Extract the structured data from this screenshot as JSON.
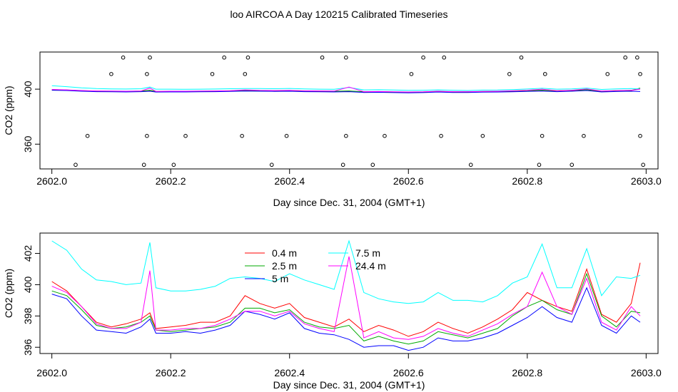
{
  "title": "loo AIRCOA A  Day 120215  Calibrated Timeseries",
  "chart_data": [
    {
      "type": "line",
      "xlabel": "Day since Dec. 31, 2004 (GMT+1)",
      "ylabel": "CO2 (ppm)",
      "xlim": [
        2601.98,
        2603.02
      ],
      "ylim": [
        342,
        427
      ],
      "x_ticks": [
        "2602.0",
        "2602.2",
        "2602.4",
        "2602.6",
        "2602.8",
        "2603.0"
      ],
      "y_ticks": [
        "360",
        "400"
      ],
      "series_colors": [
        "#ff0000",
        "#00aa00",
        "#0000ff",
        "#00ffff",
        "#ff00ff"
      ],
      "markers": {
        "style": "open-circle",
        "x": [
          2602.04,
          2602.06,
          2602.1,
          2602.12,
          2602.155,
          2602.16,
          2602.16,
          2602.165,
          2602.205,
          2602.225,
          2602.27,
          2602.29,
          2602.32,
          2602.325,
          2602.33,
          2602.37,
          2602.395,
          2602.455,
          2602.49,
          2602.495,
          2602.495,
          2602.54,
          2602.56,
          2602.605,
          2602.625,
          2602.655,
          2602.66,
          2602.705,
          2602.725,
          2602.77,
          2602.79,
          2602.82,
          2602.825,
          2602.83,
          2602.875,
          2602.895,
          2602.935,
          2602.965,
          2602.985,
          2602.99,
          2602.99,
          2602.995
        ],
        "y": [
          345,
          366,
          411,
          423,
          345,
          366,
          411,
          423,
          345,
          366,
          411,
          423,
          366,
          411,
          423,
          345,
          366,
          423,
          345,
          366,
          423,
          345,
          366,
          411,
          423,
          366,
          423,
          345,
          366,
          411,
          423,
          345,
          366,
          411,
          345,
          366,
          411,
          423,
          423,
          366,
          411,
          345
        ]
      },
      "x": [
        2602.0,
        2602.025,
        2602.05,
        2602.075,
        2602.1,
        2602.125,
        2602.15,
        2602.165,
        2602.175,
        2602.2,
        2602.225,
        2602.25,
        2602.275,
        2602.3,
        2602.325,
        2602.35,
        2602.375,
        2602.4,
        2602.425,
        2602.45,
        2602.475,
        2602.5,
        2602.525,
        2602.55,
        2602.575,
        2602.6,
        2602.625,
        2602.65,
        2602.675,
        2602.7,
        2602.725,
        2602.75,
        2602.775,
        2602.8,
        2602.825,
        2602.85,
        2602.875,
        2602.9,
        2602.925,
        2602.95,
        2602.975,
        2602.99
      ],
      "series": [
        {
          "values": [
            399.5,
            399.3,
            398.8,
            398.5,
            398.4,
            398.3,
            398.5,
            399.0,
            398.2,
            398.3,
            398.3,
            398.4,
            398.5,
            398.7,
            399.0,
            398.9,
            398.8,
            398.9,
            398.6,
            398.5,
            398.4,
            398.6,
            398.0,
            398.1,
            397.9,
            397.8,
            397.9,
            398.3,
            398.0,
            398.0,
            398.2,
            398.3,
            398.5,
            398.9,
            399.1,
            398.7,
            399.0,
            399.5,
            398.4,
            398.8,
            399.0,
            400.3
          ]
        },
        {
          "values": [
            399.7,
            399.4,
            398.9,
            398.6,
            398.5,
            398.4,
            398.6,
            399.2,
            398.3,
            398.4,
            398.4,
            398.5,
            398.6,
            398.8,
            399.1,
            399.0,
            398.9,
            399.0,
            398.7,
            398.6,
            398.5,
            398.7,
            398.1,
            398.2,
            398.0,
            397.9,
            398.0,
            398.4,
            398.1,
            398.1,
            398.3,
            398.4,
            398.6,
            399.0,
            399.2,
            398.8,
            399.1,
            399.6,
            398.5,
            398.9,
            399.1,
            400.8
          ]
        },
        {
          "values": [
            399.2,
            399.0,
            398.5,
            398.2,
            398.1,
            398.0,
            398.2,
            398.5,
            397.9,
            398.0,
            398.0,
            398.1,
            398.2,
            398.4,
            398.6,
            398.5,
            398.4,
            398.5,
            398.2,
            398.1,
            398.0,
            398.2,
            397.6,
            397.7,
            397.5,
            397.3,
            397.5,
            397.9,
            397.6,
            397.6,
            397.8,
            397.9,
            398.1,
            398.4,
            398.6,
            398.2,
            398.5,
            399.0,
            398.0,
            398.3,
            398.5,
            398.3
          ]
        },
        {
          "values": [
            402.5,
            401.8,
            401.0,
            400.4,
            400.2,
            400.1,
            400.3,
            401.5,
            400.0,
            400.0,
            399.9,
            400.0,
            400.1,
            400.3,
            400.4,
            400.4,
            400.3,
            400.5,
            400.2,
            400.0,
            399.9,
            401.2,
            399.5,
            399.6,
            399.4,
            399.1,
            399.2,
            399.5,
            399.2,
            399.0,
            399.3,
            399.4,
            399.7,
            400.1,
            400.6,
            400.0,
            400.2,
            400.8,
            399.8,
            400.2,
            400.4,
            400.2
          ]
        },
        {
          "values": [
            399.8,
            399.5,
            399.0,
            398.7,
            398.6,
            398.5,
            398.7,
            400.8,
            398.4,
            398.5,
            398.5,
            398.6,
            398.7,
            398.9,
            399.5,
            399.1,
            399.0,
            399.1,
            398.8,
            398.7,
            398.6,
            401.5,
            398.2,
            398.3,
            398.1,
            398.0,
            398.1,
            398.5,
            398.2,
            398.2,
            398.4,
            398.5,
            398.8,
            399.2,
            400.0,
            398.9,
            399.2,
            400.2,
            398.6,
            399.0,
            399.2,
            400.0
          ]
        }
      ]
    },
    {
      "type": "line",
      "xlabel": "Day since Dec. 31, 2004 (GMT+1)",
      "ylabel": "CO2 (ppm)",
      "xlim": [
        2601.98,
        2603.02
      ],
      "ylim": [
        395.6,
        403.3
      ],
      "x_ticks": [
        "2602.0",
        "2602.2",
        "2602.4",
        "2602.6",
        "2602.8",
        "2603.0"
      ],
      "y_ticks": [
        "396",
        "398",
        "400",
        "402"
      ],
      "legend": {
        "entries": [
          {
            "label": "0.4 m",
            "color": "#ff0000"
          },
          {
            "label": "2.5 m",
            "color": "#00aa00"
          },
          {
            "label": "5 m",
            "color": "#0000ff"
          },
          {
            "label": "7.5 m",
            "color": "#00ffff"
          },
          {
            "label": "24.4 m",
            "color": "#ff00ff"
          }
        ]
      },
      "x": [
        2602.0,
        2602.025,
        2602.05,
        2602.075,
        2602.1,
        2602.125,
        2602.15,
        2602.165,
        2602.175,
        2602.2,
        2602.225,
        2602.25,
        2602.275,
        2602.3,
        2602.325,
        2602.35,
        2602.375,
        2602.4,
        2602.425,
        2602.45,
        2602.475,
        2602.5,
        2602.525,
        2602.55,
        2602.575,
        2602.6,
        2602.625,
        2602.65,
        2602.675,
        2602.7,
        2602.725,
        2602.75,
        2602.775,
        2602.8,
        2602.825,
        2602.85,
        2602.875,
        2602.9,
        2602.925,
        2602.95,
        2602.975,
        2602.99
      ],
      "series": [
        {
          "name": "0.4 m",
          "values": [
            400.2,
            399.6,
            398.6,
            397.6,
            397.3,
            397.5,
            397.8,
            398.2,
            397.2,
            397.3,
            397.4,
            397.6,
            397.6,
            398.0,
            399.3,
            398.8,
            398.5,
            398.8,
            397.9,
            397.6,
            397.3,
            397.8,
            397.0,
            397.4,
            397.1,
            396.7,
            397.0,
            397.6,
            397.2,
            396.9,
            397.3,
            397.8,
            398.4,
            399.5,
            399.0,
            398.6,
            398.3,
            401.0,
            398.1,
            397.6,
            398.8,
            401.4
          ]
        },
        {
          "name": "2.5 m",
          "values": [
            399.6,
            399.3,
            398.4,
            397.4,
            397.2,
            397.3,
            397.6,
            398.0,
            397.1,
            397.0,
            397.1,
            397.2,
            397.3,
            397.6,
            398.5,
            398.5,
            398.2,
            398.4,
            397.6,
            397.3,
            397.2,
            397.4,
            396.4,
            396.7,
            396.4,
            396.2,
            396.4,
            397.0,
            396.8,
            396.6,
            396.9,
            397.2,
            398.0,
            398.6,
            399.0,
            398.4,
            398.1,
            400.7,
            398.0,
            397.3,
            398.3,
            398.2
          ]
        },
        {
          "name": "5 m",
          "values": [
            399.4,
            399.1,
            398.0,
            397.1,
            397.0,
            396.9,
            397.3,
            397.8,
            396.9,
            396.9,
            397.0,
            396.9,
            397.1,
            397.4,
            398.3,
            398.1,
            397.8,
            398.2,
            397.2,
            396.9,
            396.8,
            396.5,
            396.0,
            396.1,
            396.1,
            395.8,
            396.0,
            396.6,
            396.4,
            396.4,
            396.6,
            396.9,
            397.4,
            397.9,
            398.6,
            397.9,
            397.6,
            399.8,
            397.4,
            396.9,
            398.0,
            397.6
          ]
        },
        {
          "name": "7.5 m",
          "values": [
            402.8,
            402.2,
            401.0,
            400.3,
            400.2,
            400.0,
            400.1,
            402.7,
            399.8,
            399.6,
            399.6,
            399.7,
            399.9,
            400.4,
            400.5,
            400.4,
            400.2,
            400.7,
            400.3,
            400.0,
            399.7,
            402.8,
            399.5,
            399.1,
            398.9,
            398.8,
            398.9,
            399.5,
            399.0,
            399.0,
            398.9,
            399.3,
            400.1,
            400.5,
            402.6,
            399.8,
            399.8,
            402.3,
            399.3,
            400.5,
            400.4,
            400.6
          ]
        },
        {
          "name": "24.4 m",
          "values": [
            399.9,
            399.5,
            398.6,
            397.5,
            397.2,
            397.2,
            397.6,
            400.9,
            397.1,
            397.1,
            397.2,
            397.2,
            397.4,
            397.8,
            398.3,
            398.3,
            398.0,
            398.3,
            397.5,
            397.2,
            397.0,
            401.8,
            396.6,
            397.0,
            396.6,
            396.5,
            396.7,
            397.2,
            396.9,
            396.7,
            397.1,
            397.5,
            398.1,
            398.6,
            400.8,
            398.6,
            398.1,
            400.4,
            397.6,
            397.1,
            398.6,
            398.0
          ]
        }
      ]
    }
  ]
}
